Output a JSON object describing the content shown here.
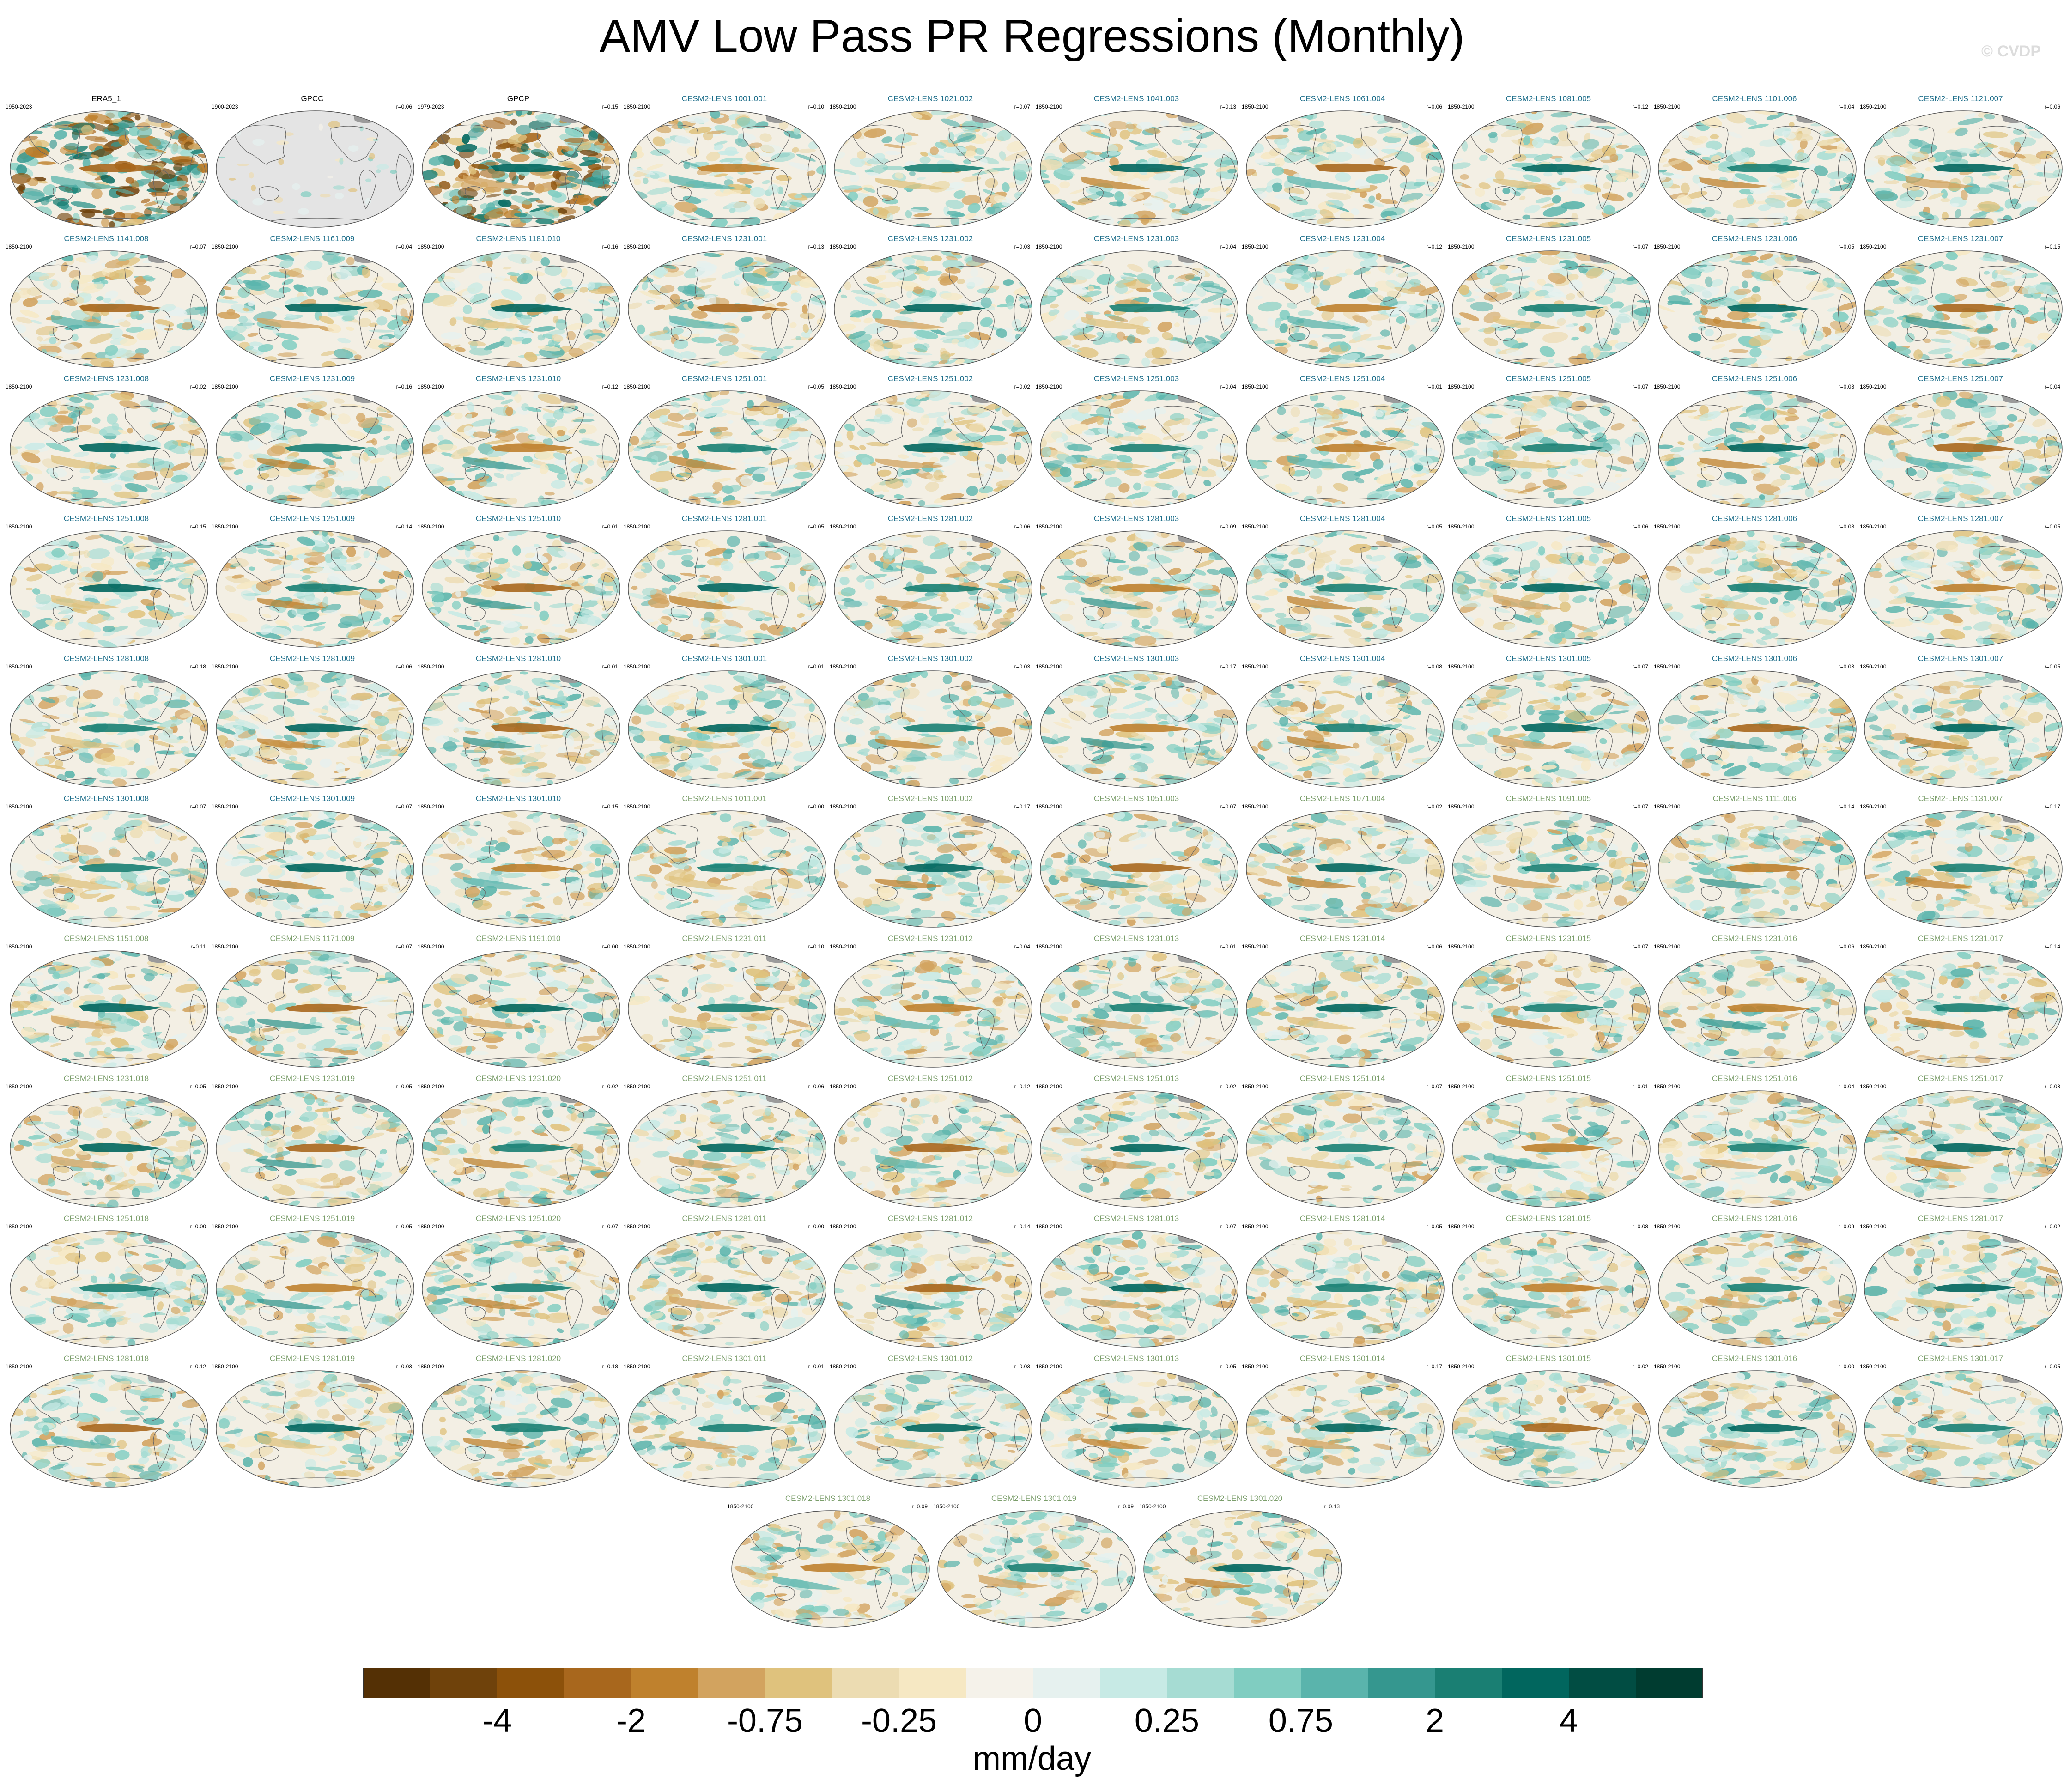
{
  "title": "AMV Low Pass PR Regressions (Monthly)",
  "watermark": "© CVDP",
  "colors": {
    "obs_title": "#000000",
    "ens_title_a": "#1f6f8b",
    "ens_title_b": "#7b9e6b",
    "land": "#e8e8e8",
    "ocean": "#f3efe4",
    "coast": "#666666"
  },
  "panels": [
    {
      "title": "ERA5_1",
      "period": "1950-2023",
      "r": "",
      "kind": "obs1"
    },
    {
      "title": "GPCC",
      "period": "1900-2023",
      "r": "r=0.06",
      "kind": "gpcc"
    },
    {
      "title": "GPCP",
      "period": "1979-2023",
      "r": "r=0.15",
      "kind": "obs2"
    },
    {
      "title": "CESM2-LENS 1001.001",
      "period": "1850-2100",
      "r": "r=0.10",
      "kind": "a"
    },
    {
      "title": "CESM2-LENS 1021.002",
      "period": "1850-2100",
      "r": "r=0.07",
      "kind": "a"
    },
    {
      "title": "CESM2-LENS 1041.003",
      "period": "1850-2100",
      "r": "r=0.13",
      "kind": "a"
    },
    {
      "title": "CESM2-LENS 1061.004",
      "period": "1850-2100",
      "r": "r=0.06",
      "kind": "a"
    },
    {
      "title": "CESM2-LENS 1081.005",
      "period": "1850-2100",
      "r": "r=0.12",
      "kind": "a"
    },
    {
      "title": "CESM2-LENS 1101.006",
      "period": "1850-2100",
      "r": "r=0.04",
      "kind": "a"
    },
    {
      "title": "CESM2-LENS 1121.007",
      "period": "1850-2100",
      "r": "r=0.06",
      "kind": "a"
    },
    {
      "title": "CESM2-LENS 1141.008",
      "period": "1850-2100",
      "r": "r=0.07",
      "kind": "a"
    },
    {
      "title": "CESM2-LENS 1161.009",
      "period": "1850-2100",
      "r": "r=0.04",
      "kind": "a"
    },
    {
      "title": "CESM2-LENS 1181.010",
      "period": "1850-2100",
      "r": "r=0.16",
      "kind": "a"
    },
    {
      "title": "CESM2-LENS 1231.001",
      "period": "1850-2100",
      "r": "r=0.13",
      "kind": "a"
    },
    {
      "title": "CESM2-LENS 1231.002",
      "period": "1850-2100",
      "r": "r=0.03",
      "kind": "a"
    },
    {
      "title": "CESM2-LENS 1231.003",
      "period": "1850-2100",
      "r": "r=0.04",
      "kind": "a"
    },
    {
      "title": "CESM2-LENS 1231.004",
      "period": "1850-2100",
      "r": "r=0.12",
      "kind": "a"
    },
    {
      "title": "CESM2-LENS 1231.005",
      "period": "1850-2100",
      "r": "r=0.07",
      "kind": "a"
    },
    {
      "title": "CESM2-LENS 1231.006",
      "period": "1850-2100",
      "r": "r=0.05",
      "kind": "a"
    },
    {
      "title": "CESM2-LENS 1231.007",
      "period": "1850-2100",
      "r": "r=0.15",
      "kind": "a"
    },
    {
      "title": "CESM2-LENS 1231.008",
      "period": "1850-2100",
      "r": "r=0.02",
      "kind": "a"
    },
    {
      "title": "CESM2-LENS 1231.009",
      "period": "1850-2100",
      "r": "r=0.16",
      "kind": "a"
    },
    {
      "title": "CESM2-LENS 1231.010",
      "period": "1850-2100",
      "r": "r=0.12",
      "kind": "a"
    },
    {
      "title": "CESM2-LENS 1251.001",
      "period": "1850-2100",
      "r": "r=0.05",
      "kind": "a"
    },
    {
      "title": "CESM2-LENS 1251.002",
      "period": "1850-2100",
      "r": "r=0.02",
      "kind": "a"
    },
    {
      "title": "CESM2-LENS 1251.003",
      "period": "1850-2100",
      "r": "r=0.04",
      "kind": "a"
    },
    {
      "title": "CESM2-LENS 1251.004",
      "period": "1850-2100",
      "r": "r=0.01",
      "kind": "a"
    },
    {
      "title": "CESM2-LENS 1251.005",
      "period": "1850-2100",
      "r": "r=0.07",
      "kind": "a"
    },
    {
      "title": "CESM2-LENS 1251.006",
      "period": "1850-2100",
      "r": "r=0.08",
      "kind": "a"
    },
    {
      "title": "CESM2-LENS 1251.007",
      "period": "1850-2100",
      "r": "r=0.04",
      "kind": "a"
    },
    {
      "title": "CESM2-LENS 1251.008",
      "period": "1850-2100",
      "r": "r=0.15",
      "kind": "a"
    },
    {
      "title": "CESM2-LENS 1251.009",
      "period": "1850-2100",
      "r": "r=0.14",
      "kind": "a"
    },
    {
      "title": "CESM2-LENS 1251.010",
      "period": "1850-2100",
      "r": "r=0.01",
      "kind": "a"
    },
    {
      "title": "CESM2-LENS 1281.001",
      "period": "1850-2100",
      "r": "r=0.05",
      "kind": "a"
    },
    {
      "title": "CESM2-LENS 1281.002",
      "period": "1850-2100",
      "r": "r=0.06",
      "kind": "a"
    },
    {
      "title": "CESM2-LENS 1281.003",
      "period": "1850-2100",
      "r": "r=0.09",
      "kind": "a"
    },
    {
      "title": "CESM2-LENS 1281.004",
      "period": "1850-2100",
      "r": "r=0.05",
      "kind": "a"
    },
    {
      "title": "CESM2-LENS 1281.005",
      "period": "1850-2100",
      "r": "r=0.06",
      "kind": "a"
    },
    {
      "title": "CESM2-LENS 1281.006",
      "period": "1850-2100",
      "r": "r=0.08",
      "kind": "a"
    },
    {
      "title": "CESM2-LENS 1281.007",
      "period": "1850-2100",
      "r": "r=0.05",
      "kind": "a"
    },
    {
      "title": "CESM2-LENS 1281.008",
      "period": "1850-2100",
      "r": "r=0.18",
      "kind": "a"
    },
    {
      "title": "CESM2-LENS 1281.009",
      "period": "1850-2100",
      "r": "r=0.06",
      "kind": "a"
    },
    {
      "title": "CESM2-LENS 1281.010",
      "period": "1850-2100",
      "r": "r=0.01",
      "kind": "a"
    },
    {
      "title": "CESM2-LENS 1301.001",
      "period": "1850-2100",
      "r": "r=0.01",
      "kind": "a"
    },
    {
      "title": "CESM2-LENS 1301.002",
      "period": "1850-2100",
      "r": "r=0.03",
      "kind": "a"
    },
    {
      "title": "CESM2-LENS 1301.003",
      "period": "1850-2100",
      "r": "r=0.17",
      "kind": "a"
    },
    {
      "title": "CESM2-LENS 1301.004",
      "period": "1850-2100",
      "r": "r=0.08",
      "kind": "a"
    },
    {
      "title": "CESM2-LENS 1301.005",
      "period": "1850-2100",
      "r": "r=0.07",
      "kind": "a"
    },
    {
      "title": "CESM2-LENS 1301.006",
      "period": "1850-2100",
      "r": "r=0.03",
      "kind": "a"
    },
    {
      "title": "CESM2-LENS 1301.007",
      "period": "1850-2100",
      "r": "r=0.05",
      "kind": "a"
    },
    {
      "title": "CESM2-LENS 1301.008",
      "period": "1850-2100",
      "r": "r=0.07",
      "kind": "a"
    },
    {
      "title": "CESM2-LENS 1301.009",
      "period": "1850-2100",
      "r": "r=0.07",
      "kind": "a"
    },
    {
      "title": "CESM2-LENS 1301.010",
      "period": "1850-2100",
      "r": "r=0.15",
      "kind": "a"
    },
    {
      "title": "CESM2-LENS 1011.001",
      "period": "1850-2100",
      "r": "r=0.00",
      "kind": "b"
    },
    {
      "title": "CESM2-LENS 1031.002",
      "period": "1850-2100",
      "r": "r=0.17",
      "kind": "b"
    },
    {
      "title": "CESM2-LENS 1051.003",
      "period": "1850-2100",
      "r": "r=0.07",
      "kind": "b"
    },
    {
      "title": "CESM2-LENS 1071.004",
      "period": "1850-2100",
      "r": "r=0.02",
      "kind": "b"
    },
    {
      "title": "CESM2-LENS 1091.005",
      "period": "1850-2100",
      "r": "r=0.07",
      "kind": "b"
    },
    {
      "title": "CESM2-LENS 1111.006",
      "period": "1850-2100",
      "r": "r=0.14",
      "kind": "b"
    },
    {
      "title": "CESM2-LENS 1131.007",
      "period": "1850-2100",
      "r": "r=0.17",
      "kind": "b"
    },
    {
      "title": "CESM2-LENS 1151.008",
      "period": "1850-2100",
      "r": "r=0.11",
      "kind": "b"
    },
    {
      "title": "CESM2-LENS 1171.009",
      "period": "1850-2100",
      "r": "r=0.07",
      "kind": "b"
    },
    {
      "title": "CESM2-LENS 1191.010",
      "period": "1850-2100",
      "r": "r=0.00",
      "kind": "b"
    },
    {
      "title": "CESM2-LENS 1231.011",
      "period": "1850-2100",
      "r": "r=0.10",
      "kind": "b"
    },
    {
      "title": "CESM2-LENS 1231.012",
      "period": "1850-2100",
      "r": "r=0.04",
      "kind": "b"
    },
    {
      "title": "CESM2-LENS 1231.013",
      "period": "1850-2100",
      "r": "r=0.01",
      "kind": "b"
    },
    {
      "title": "CESM2-LENS 1231.014",
      "period": "1850-2100",
      "r": "r=0.06",
      "kind": "b"
    },
    {
      "title": "CESM2-LENS 1231.015",
      "period": "1850-2100",
      "r": "r=0.07",
      "kind": "b"
    },
    {
      "title": "CESM2-LENS 1231.016",
      "period": "1850-2100",
      "r": "r=0.06",
      "kind": "b"
    },
    {
      "title": "CESM2-LENS 1231.017",
      "period": "1850-2100",
      "r": "r=0.14",
      "kind": "b"
    },
    {
      "title": "CESM2-LENS 1231.018",
      "period": "1850-2100",
      "r": "r=0.05",
      "kind": "b"
    },
    {
      "title": "CESM2-LENS 1231.019",
      "period": "1850-2100",
      "r": "r=0.05",
      "kind": "b"
    },
    {
      "title": "CESM2-LENS 1231.020",
      "period": "1850-2100",
      "r": "r=0.02",
      "kind": "b"
    },
    {
      "title": "CESM2-LENS 1251.011",
      "period": "1850-2100",
      "r": "r=0.06",
      "kind": "b"
    },
    {
      "title": "CESM2-LENS 1251.012",
      "period": "1850-2100",
      "r": "r=0.12",
      "kind": "b"
    },
    {
      "title": "CESM2-LENS 1251.013",
      "period": "1850-2100",
      "r": "r=0.02",
      "kind": "b"
    },
    {
      "title": "CESM2-LENS 1251.014",
      "period": "1850-2100",
      "r": "r=0.07",
      "kind": "b"
    },
    {
      "title": "CESM2-LENS 1251.015",
      "period": "1850-2100",
      "r": "r=0.01",
      "kind": "b"
    },
    {
      "title": "CESM2-LENS 1251.016",
      "period": "1850-2100",
      "r": "r=0.04",
      "kind": "b"
    },
    {
      "title": "CESM2-LENS 1251.017",
      "period": "1850-2100",
      "r": "r=0.03",
      "kind": "b"
    },
    {
      "title": "CESM2-LENS 1251.018",
      "period": "1850-2100",
      "r": "r=0.00",
      "kind": "b"
    },
    {
      "title": "CESM2-LENS 1251.019",
      "period": "1850-2100",
      "r": "r=0.05",
      "kind": "b"
    },
    {
      "title": "CESM2-LENS 1251.020",
      "period": "1850-2100",
      "r": "r=0.07",
      "kind": "b"
    },
    {
      "title": "CESM2-LENS 1281.011",
      "period": "1850-2100",
      "r": "r=0.00",
      "kind": "b"
    },
    {
      "title": "CESM2-LENS 1281.012",
      "period": "1850-2100",
      "r": "r=0.14",
      "kind": "b"
    },
    {
      "title": "CESM2-LENS 1281.013",
      "period": "1850-2100",
      "r": "r=0.07",
      "kind": "b"
    },
    {
      "title": "CESM2-LENS 1281.014",
      "period": "1850-2100",
      "r": "r=0.05",
      "kind": "b"
    },
    {
      "title": "CESM2-LENS 1281.015",
      "period": "1850-2100",
      "r": "r=0.08",
      "kind": "b"
    },
    {
      "title": "CESM2-LENS 1281.016",
      "period": "1850-2100",
      "r": "r=0.09",
      "kind": "b"
    },
    {
      "title": "CESM2-LENS 1281.017",
      "period": "1850-2100",
      "r": "r=0.02",
      "kind": "b"
    },
    {
      "title": "CESM2-LENS 1281.018",
      "period": "1850-2100",
      "r": "r=0.12",
      "kind": "b"
    },
    {
      "title": "CESM2-LENS 1281.019",
      "period": "1850-2100",
      "r": "r=0.03",
      "kind": "b"
    },
    {
      "title": "CESM2-LENS 1281.020",
      "period": "1850-2100",
      "r": "r=0.18",
      "kind": "b"
    },
    {
      "title": "CESM2-LENS 1301.011",
      "period": "1850-2100",
      "r": "r=0.01",
      "kind": "b"
    },
    {
      "title": "CESM2-LENS 1301.012",
      "period": "1850-2100",
      "r": "r=0.03",
      "kind": "b"
    },
    {
      "title": "CESM2-LENS 1301.013",
      "period": "1850-2100",
      "r": "r=0.05",
      "kind": "b"
    },
    {
      "title": "CESM2-LENS 1301.014",
      "period": "1850-2100",
      "r": "r=0.17",
      "kind": "b"
    },
    {
      "title": "CESM2-LENS 1301.015",
      "period": "1850-2100",
      "r": "r=0.02",
      "kind": "b"
    },
    {
      "title": "CESM2-LENS 1301.016",
      "period": "1850-2100",
      "r": "r=0.00",
      "kind": "b"
    },
    {
      "title": "CESM2-LENS 1301.017",
      "period": "1850-2100",
      "r": "r=0.05",
      "kind": "b"
    },
    {
      "title": "CESM2-LENS 1301.018",
      "period": "1850-2100",
      "r": "r=0.09",
      "kind": "b"
    },
    {
      "title": "CESM2-LENS 1301.019",
      "period": "1850-2100",
      "r": "r=0.09",
      "kind": "b"
    },
    {
      "title": "CESM2-LENS 1301.020",
      "period": "1850-2100",
      "r": "r=0.13",
      "kind": "b"
    }
  ],
  "colorbar": {
    "units": "mm/day",
    "colors": [
      "#543005",
      "#6f420b",
      "#8c510a",
      "#a8671d",
      "#bf812d",
      "#d2a35f",
      "#dfc27d",
      "#ecdcb2",
      "#f6e8c3",
      "#f5f2ea",
      "#e6f1ef",
      "#c7eae5",
      "#a6dcd3",
      "#80cdc1",
      "#5ab4ac",
      "#35978f",
      "#1a7f73",
      "#01665e",
      "#014d43",
      "#003c30"
    ],
    "labels": [
      {
        "text": "-4",
        "after_box": 2
      },
      {
        "text": "-2",
        "after_box": 4
      },
      {
        "text": "-0.75",
        "after_box": 6
      },
      {
        "text": "-0.25",
        "after_box": 8
      },
      {
        "text": "0",
        "after_box": 10
      },
      {
        "text": "0.25",
        "after_box": 12
      },
      {
        "text": "0.75",
        "after_box": 14
      },
      {
        "text": "2",
        "after_box": 16
      },
      {
        "text": "4",
        "after_box": 18
      }
    ]
  }
}
